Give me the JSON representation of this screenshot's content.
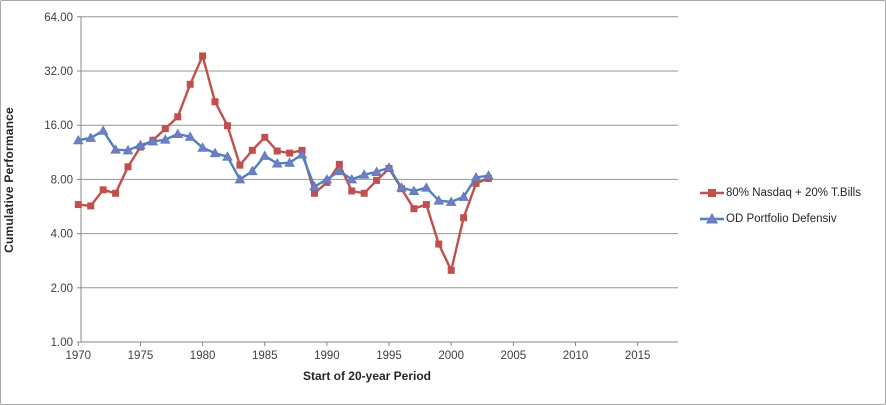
{
  "chart_data": {
    "type": "line",
    "title": "",
    "xlabel": "Start of 20-year Period",
    "ylabel": "Cumulative Performance",
    "y_scale": "log2",
    "ylim": [
      1,
      64
    ],
    "y_ticks": [
      64,
      32,
      16,
      8,
      4,
      2,
      1
    ],
    "y_tick_labels": [
      "64.00",
      "32.00",
      "16.00",
      "8.00",
      "4.00",
      "2.00",
      "1.00"
    ],
    "x_ticks": [
      1970,
      1975,
      1980,
      1985,
      1990,
      1995,
      2000,
      2005,
      2010,
      2015
    ],
    "x_axis_end_year": 2018.3,
    "grid": true,
    "legend_position": "right",
    "x": [
      1970,
      1971,
      1972,
      1973,
      1974,
      1975,
      1976,
      1977,
      1978,
      1979,
      1980,
      1981,
      1982,
      1983,
      1984,
      1985,
      1986,
      1987,
      1988,
      1989,
      1990,
      1991,
      1992,
      1993,
      1994,
      1995,
      1996,
      1997,
      1998,
      1999,
      2000,
      2001,
      2002,
      2003
    ],
    "series": [
      {
        "name": "80% Nasdaq  + 20% T.Bills",
        "color": "#c0504d",
        "marker": "square",
        "marker_fill": "#c0504d",
        "values": [
          5.8,
          5.7,
          7.0,
          6.7,
          9.4,
          12.1,
          13.2,
          15.3,
          17.8,
          27.0,
          38.8,
          21.6,
          15.9,
          9.6,
          11.6,
          13.7,
          11.5,
          11.2,
          11.6,
          6.7,
          7.7,
          9.7,
          6.9,
          6.7,
          7.9,
          9.2,
          7.1,
          5.5,
          5.8,
          3.5,
          2.5,
          4.9,
          7.6,
          8.1
        ]
      },
      {
        "name": "OD Portfolio Defensiv",
        "color": "#4f81bd",
        "marker": "triangle",
        "marker_fill": "#7b79c0",
        "values": [
          13.2,
          13.6,
          14.9,
          11.7,
          11.6,
          12.4,
          13.0,
          13.3,
          14.3,
          13.8,
          12.0,
          11.2,
          10.7,
          8.0,
          8.9,
          10.8,
          9.8,
          9.9,
          11.0,
          7.3,
          8.0,
          8.9,
          8.0,
          8.5,
          8.8,
          9.3,
          7.2,
          6.9,
          7.2,
          6.1,
          6.0,
          6.4,
          8.2,
          8.4
        ]
      }
    ],
    "axis_color": "#898989",
    "grid_color": "#969696",
    "tick_label_color": "#3f3f3f"
  }
}
